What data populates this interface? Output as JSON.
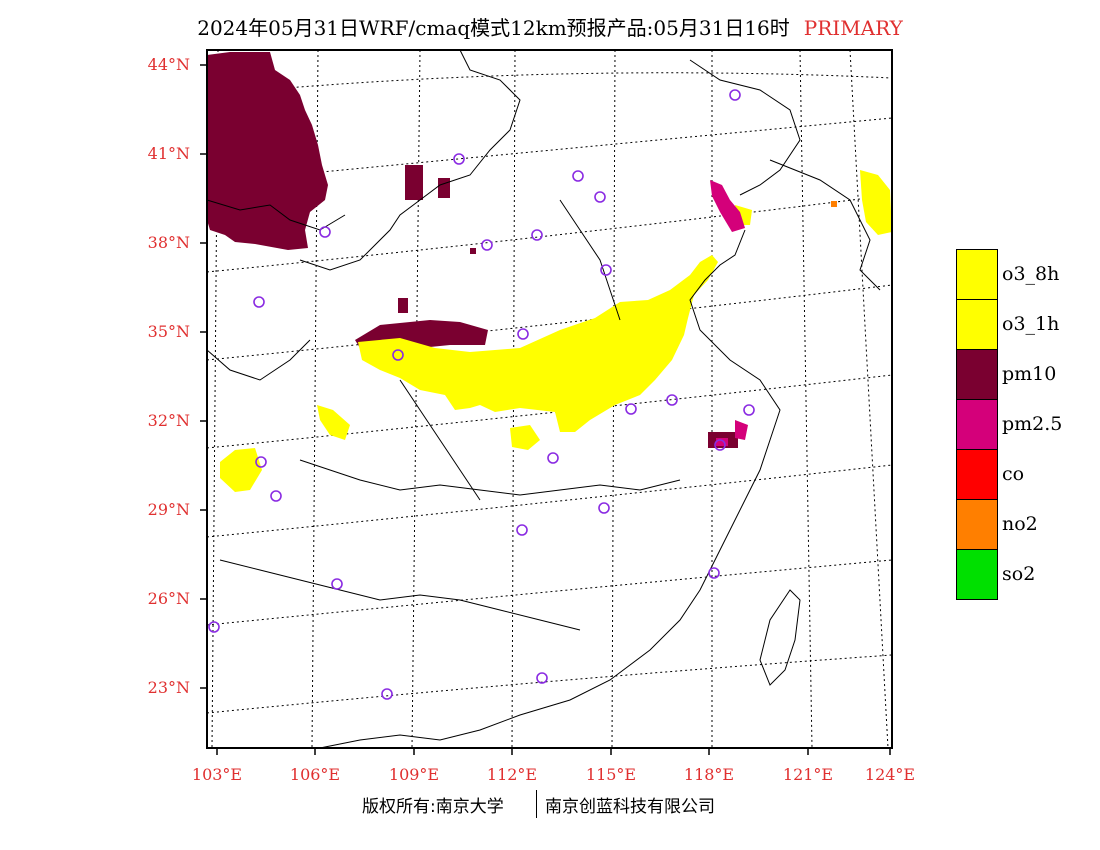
{
  "header": {
    "title": "2024年05月31日WRF/cmaq模式12km预报产品:05月31日16时",
    "tag": "PRIMARY"
  },
  "axes": {
    "lat_labels": [
      "44°N",
      "41°N",
      "38°N",
      "35°N",
      "32°N",
      "29°N",
      "26°N",
      "23°N"
    ],
    "lon_labels": [
      "103°E",
      "106°E",
      "109°E",
      "112°E",
      "115°E",
      "118°E",
      "121°E",
      "124°E"
    ]
  },
  "legend": {
    "items": [
      {
        "label": "o3_8h",
        "color": "#ffff00"
      },
      {
        "label": "o3_1h",
        "color": "#ffff00"
      },
      {
        "label": "pm10",
        "color": "#7a0030"
      },
      {
        "label": "pm2.5",
        "color": "#d4007a"
      },
      {
        "label": "co",
        "color": "#ff0000"
      },
      {
        "label": "no2",
        "color": "#ff7f00"
      },
      {
        "label": "so2",
        "color": "#00e000"
      }
    ]
  },
  "credits": {
    "left": "版权所有:南京大学",
    "right": "南京创蓝科技有限公司"
  },
  "map": {
    "station_color": "#8a2be2",
    "primary_pollutant_regions": [
      "o3_1h",
      "pm10",
      "pm2.5",
      "no2"
    ]
  }
}
